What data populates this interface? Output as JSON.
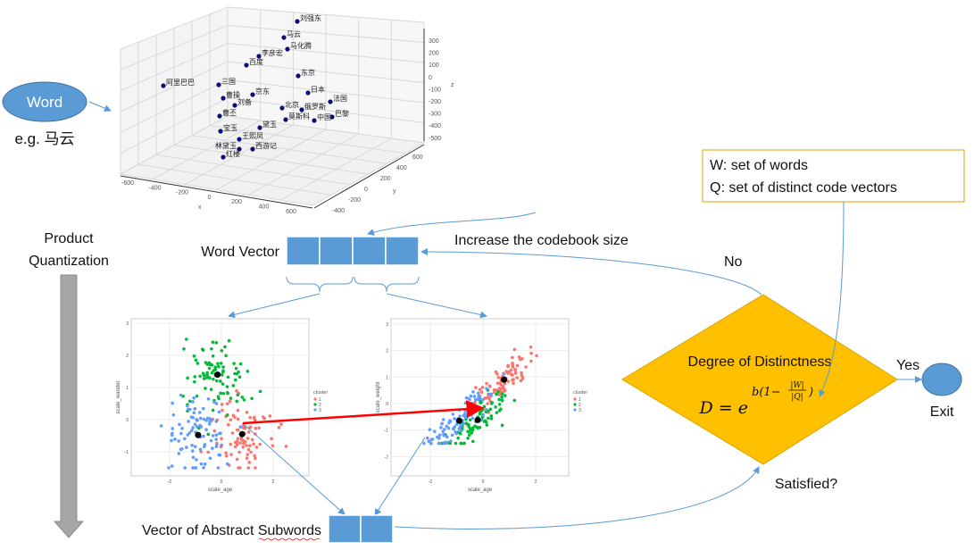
{
  "word_node": {
    "label": "Word",
    "example": "e.g. 马云"
  },
  "plot3d": {
    "words": [
      "刘强东",
      "马云",
      "马化腾",
      "李彦宏",
      "百度",
      "东京",
      "阿里巴巴",
      "三国",
      "京东",
      "日本",
      "曹操",
      "刘备",
      "曹丕",
      "北京",
      "俄罗斯",
      "法国",
      "巴黎",
      "莫斯科",
      "中国",
      "宝玉",
      "黛玉",
      "王熙凤",
      "林黛玉",
      "西游记",
      "红楼"
    ],
    "x_label": "x",
    "y_label": "y",
    "z_label": "z",
    "x_ticks": [
      "-600",
      "-400",
      "-200",
      "0",
      "200",
      "400",
      "600"
    ],
    "y_ticks": [
      "-400",
      "-200",
      "0",
      "200",
      "400",
      "600"
    ],
    "z_ticks": [
      "300",
      "200",
      "100",
      "0",
      "-100",
      "-200",
      "-300",
      "-400",
      "-500"
    ]
  },
  "product_quantization": {
    "line1": "Product",
    "line2": "Quantization"
  },
  "word_vector": {
    "label": "Word Vector",
    "cells": 4
  },
  "increase_label": "Increase the codebook size",
  "no_label": "No",
  "yes_label": "Yes",
  "exit_label": "Exit",
  "satisfied_label": "Satisfied?",
  "decision": {
    "title": "Degree of Distinctness",
    "formula_lhs": "D = e",
    "exp_b": "b(1−",
    "frac_num": "|W|",
    "frac_den": "|Q|",
    "exp_close": ")"
  },
  "definitions": {
    "line1": "W: set of words",
    "line2": "Q: set of distinct code vectors"
  },
  "subwords": {
    "label_prefix": "Vector of Abstract ",
    "label_underlined": "Subwords",
    "cells": 2
  },
  "scatter_left": {
    "x_label": "scale_age",
    "y_label": "scale_wander",
    "x_ticks": [
      "-2",
      "0",
      "2"
    ],
    "y_ticks": [
      "3",
      "2",
      "1",
      "0",
      "-1"
    ],
    "centers": [
      [
        0.8,
        -0.45
      ],
      [
        -0.15,
        1.4
      ],
      [
        -0.9,
        -0.48
      ]
    ]
  },
  "scatter_right": {
    "x_label": "scale_age",
    "y_label": "scale_weight",
    "x_ticks": [
      "-2",
      "0",
      "2"
    ],
    "y_ticks": [
      "3",
      "2",
      "1",
      "0",
      "-1",
      "-2"
    ],
    "centers": [
      [
        0.8,
        0.9
      ],
      [
        -0.2,
        -0.62
      ],
      [
        -0.9,
        -0.65
      ]
    ]
  },
  "legend": {
    "title": "cluster",
    "items": [
      "1",
      "2",
      "3"
    ]
  },
  "colors": {
    "blue": "#5b9bd5",
    "gold": "#ffc000",
    "cluster1": "#f8766d",
    "cluster2": "#00ba38",
    "cluster3": "#619cff",
    "arrow_red": "#ff0000",
    "gray_arrow": "#a6a6a6"
  }
}
